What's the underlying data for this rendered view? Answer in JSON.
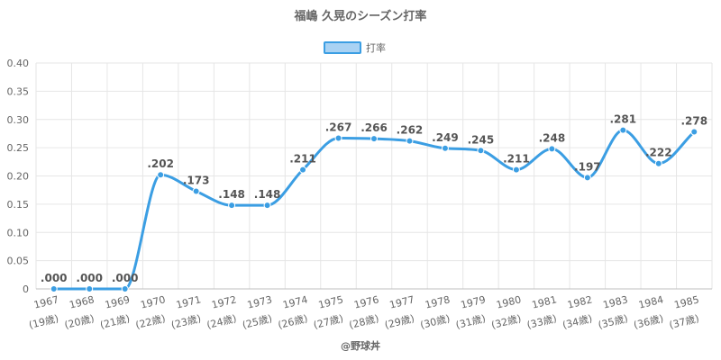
{
  "chart_data": {
    "type": "line",
    "title": "福嶋 久晃のシーズン打率",
    "legend": {
      "label": "打率",
      "position": "top-center"
    },
    "categories": [
      "1967",
      "1968",
      "1969",
      "1970",
      "1971",
      "1972",
      "1973",
      "1974",
      "1975",
      "1976",
      "1977",
      "1978",
      "1979",
      "1980",
      "1981",
      "1982",
      "1983",
      "1984",
      "1985"
    ],
    "age_labels": [
      "(19歳)",
      "(20歳)",
      "(21歳)",
      "(22歳)",
      "(23歳)",
      "(24歳)",
      "(25歳)",
      "(26歳)",
      "(27歳)",
      "(28歳)",
      "(29歳)",
      "(30歳)",
      "(31歳)",
      "(32歳)",
      "(33歳)",
      "(34歳)",
      "(35歳)",
      "(36歳)",
      "(37歳)"
    ],
    "series": [
      {
        "name": "打率",
        "values": [
          0.0,
          0.0,
          0.0,
          0.202,
          0.173,
          0.148,
          0.148,
          0.211,
          0.267,
          0.266,
          0.262,
          0.249,
          0.245,
          0.211,
          0.248,
          0.197,
          0.281,
          0.222,
          0.278
        ],
        "data_labels": [
          ".000",
          ".000",
          ".000",
          ".202",
          ".173",
          ".148",
          ".148",
          ".211",
          ".267",
          ".266",
          ".262",
          ".249",
          ".245",
          ".211",
          ".248",
          ".197",
          ".281",
          ".222",
          ".278"
        ]
      }
    ],
    "ylim": [
      0,
      0.4
    ],
    "yticks": [
      "0",
      "0.05",
      "0.10",
      "0.15",
      "0.20",
      "0.25",
      "0.30",
      "0.35",
      "0.40"
    ],
    "grid": true,
    "colors": {
      "line": "#3b9ee3",
      "legend_fill": "#a9d2f3"
    }
  },
  "credit": "@野球丼"
}
